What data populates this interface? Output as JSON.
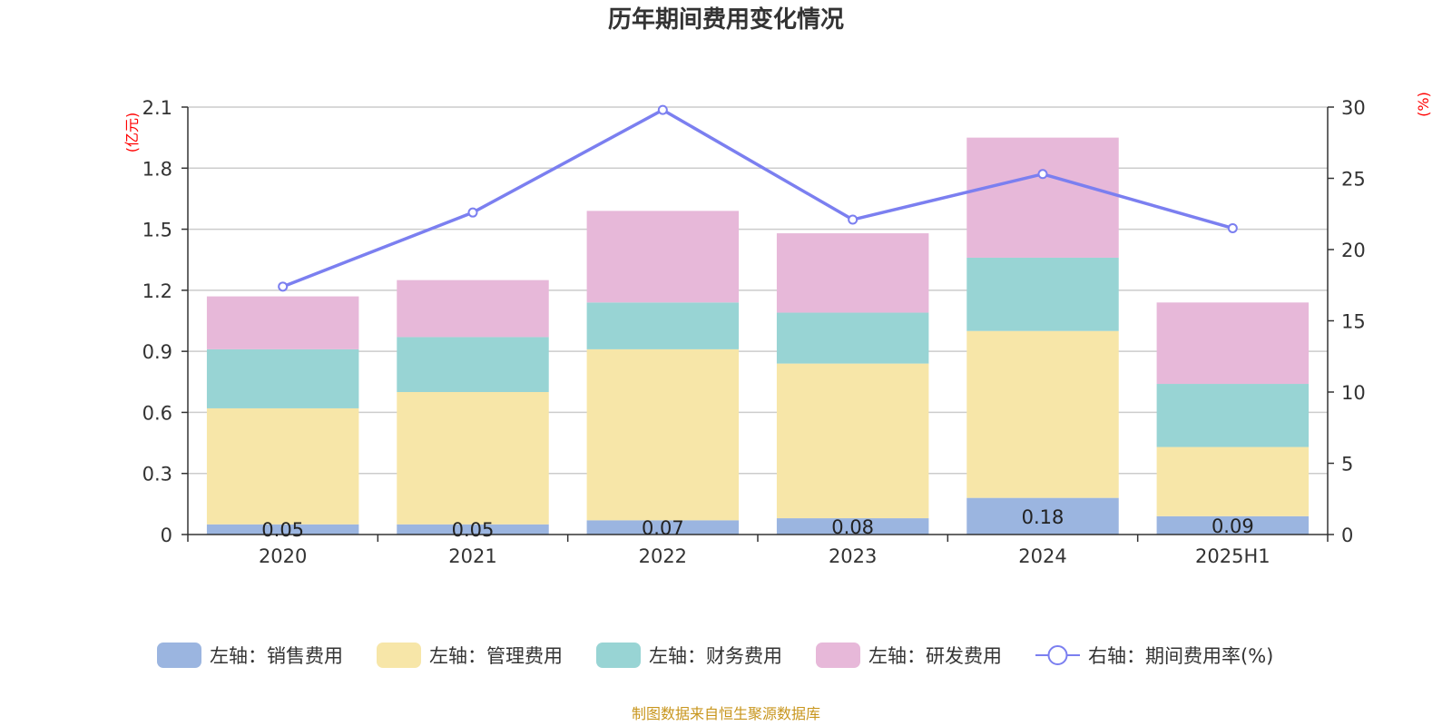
{
  "chart_data": {
    "type": "bar",
    "stacked": true,
    "title": "历年期间费用变化情况",
    "categories": [
      "2020",
      "2021",
      "2022",
      "2023",
      "2024",
      "2025H1"
    ],
    "left_axis": {
      "unit": "(亿元)",
      "ylim": [
        0,
        2.1
      ],
      "ticks": [
        "0",
        "0.3",
        "0.6",
        "0.9",
        "1.2",
        "1.5",
        "1.8",
        "2.1"
      ]
    },
    "right_axis": {
      "unit": "(%)",
      "ylim": [
        0,
        30
      ],
      "ticks": [
        "0",
        "5",
        "10",
        "15",
        "20",
        "25",
        "30"
      ]
    },
    "series": [
      {
        "name": "左轴：销售费用",
        "type": "bar",
        "axis": "left",
        "color": "#9bb5e0",
        "values": [
          0.05,
          0.05,
          0.07,
          0.08,
          0.18,
          0.09
        ],
        "labels": [
          "0.05",
          "0.05",
          "0.07",
          "0.08",
          "0.18",
          "0.09"
        ]
      },
      {
        "name": "左轴：管理费用",
        "type": "bar",
        "axis": "left",
        "color": "#f7e6a8",
        "values": [
          0.57,
          0.65,
          0.84,
          0.76,
          0.82,
          0.34
        ]
      },
      {
        "name": "左轴：财务费用",
        "type": "bar",
        "axis": "left",
        "color": "#98d4d4",
        "values": [
          0.29,
          0.27,
          0.23,
          0.25,
          0.36,
          0.31
        ]
      },
      {
        "name": "左轴：研发费用",
        "type": "bar",
        "axis": "left",
        "color": "#e7b8d9",
        "values": [
          0.26,
          0.28,
          0.45,
          0.39,
          0.59,
          0.4
        ]
      },
      {
        "name": "右轴：期间费用率(%)",
        "type": "line",
        "axis": "right",
        "color": "#7b7ff0",
        "values": [
          17.4,
          22.6,
          29.8,
          22.1,
          25.3,
          21.5
        ]
      }
    ],
    "grid": true,
    "legend_position": "bottom"
  },
  "source": "制图数据来自恒生聚源数据库"
}
